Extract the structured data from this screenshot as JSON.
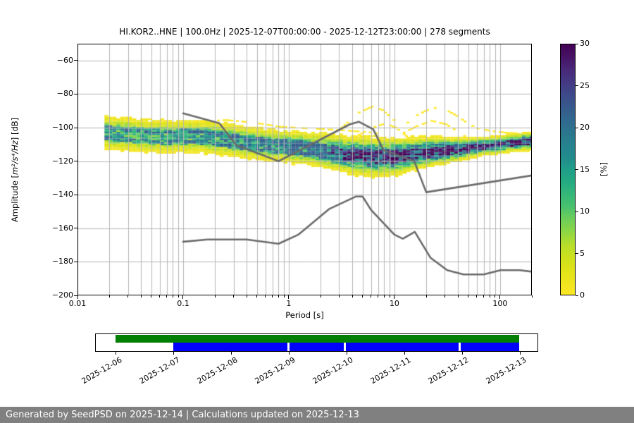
{
  "plot": {
    "title": "HI.KOR2..HNE | 100.0Hz | 2025-12-07T00:00:00 - 2025-12-12T23:00:00 | 278 segments",
    "station": "HI.KOR2..HNE",
    "sampling_rate": "100.0Hz",
    "time_range_start": "2025-12-07T00:00:00",
    "time_range_end": "2025-12-12T23:00:00",
    "segments_count": "278 segments",
    "xlabel": "Period [s]",
    "ylabel_prefix": "Amplitude [",
    "ylabel_math": "m²/s⁴/Hz",
    "ylabel_suffix": "] [dB]",
    "x_ticks": [
      {
        "value": 0.01,
        "label": "0.01"
      },
      {
        "value": 0.1,
        "label": "0.1"
      },
      {
        "value": 1,
        "label": "1"
      },
      {
        "value": 10,
        "label": "10"
      },
      {
        "value": 100,
        "label": "100"
      }
    ],
    "y_ticks": [
      {
        "value": -60,
        "label": "−60"
      },
      {
        "value": -80,
        "label": "−80"
      },
      {
        "value": -100,
        "label": "−100"
      },
      {
        "value": -120,
        "label": "−120"
      },
      {
        "value": -140,
        "label": "−140"
      },
      {
        "value": -160,
        "label": "−160"
      },
      {
        "value": -180,
        "label": "−180"
      },
      {
        "value": -200,
        "label": "−200"
      }
    ],
    "grid_color": "#b5b5b5",
    "colorbar": {
      "label": "[%]",
      "min": 0,
      "max": 30,
      "ticks": [
        0,
        5,
        10,
        15,
        20,
        25,
        30
      ],
      "colormap": "viridis_r"
    }
  },
  "chart_data": {
    "type": "heatmap",
    "title": "HI.KOR2..HNE | 100.0Hz | 2025-12-07T00:00:00 - 2025-12-12T23:00:00 | 278 segments",
    "xlabel": "Period [s]",
    "ylabel": "Amplitude [m²/s⁴/Hz] [dB]",
    "x_scale": "log",
    "xlim": [
      0.01,
      200
    ],
    "ylim": [
      -200,
      -50
    ],
    "grid": true,
    "colorbar": {
      "label": "[%]",
      "range": [
        0,
        30
      ],
      "ticks": [
        0,
        5,
        10,
        15,
        20,
        25,
        30
      ],
      "colormap": "viridis_r"
    },
    "viridis_anchors": [
      [
        0.0,
        "#440154"
      ],
      [
        0.05,
        "#471365"
      ],
      [
        0.1,
        "#482878"
      ],
      [
        0.15,
        "#443983"
      ],
      [
        0.2,
        "#3e4989"
      ],
      [
        0.25,
        "#37598c"
      ],
      [
        0.3,
        "#31688e"
      ],
      [
        0.35,
        "#2c758e"
      ],
      [
        0.4,
        "#26828e"
      ],
      [
        0.45,
        "#228b8d"
      ],
      [
        0.5,
        "#1f9e89"
      ],
      [
        0.55,
        "#25ab82"
      ],
      [
        0.6,
        "#35b779"
      ],
      [
        0.65,
        "#4ac16d"
      ],
      [
        0.7,
        "#6ece58"
      ],
      [
        0.75,
        "#8fd744"
      ],
      [
        0.8,
        "#b5de2b"
      ],
      [
        0.85,
        "#cde11d"
      ],
      [
        0.9,
        "#dfe318"
      ],
      [
        0.95,
        "#efe51c"
      ],
      [
        1.0,
        "#fde725"
      ]
    ],
    "ppsd_distribution": {
      "description": "Probability density band: per period, mode amplitude (dB), gaussian spread (dB) and peak probability (%)",
      "period_octave_step": 0.125,
      "period_range": [
        0.018,
        200
      ],
      "db_bin": 1,
      "points": [
        {
          "period": 0.018,
          "mode_db": -103.0,
          "sigma_db": 4.3,
          "peak_pct": 13
        },
        {
          "period": 0.03,
          "mode_db": -104.0,
          "sigma_db": 4.3,
          "peak_pct": 13
        },
        {
          "period": 0.05,
          "mode_db": -105.0,
          "sigma_db": 4.3,
          "peak_pct": 12.5
        },
        {
          "period": 0.08,
          "mode_db": -105.5,
          "sigma_db": 4.3,
          "peak_pct": 12.5
        },
        {
          "period": 0.13,
          "mode_db": -105.0,
          "sigma_db": 4.3,
          "peak_pct": 14
        },
        {
          "period": 0.22,
          "mode_db": -106.5,
          "sigma_db": 4.2,
          "peak_pct": 15
        },
        {
          "period": 0.4,
          "mode_db": -109.0,
          "sigma_db": 4.0,
          "peak_pct": 16
        },
        {
          "period": 0.7,
          "mode_db": -110.5,
          "sigma_db": 4.0,
          "peak_pct": 17
        },
        {
          "period": 1.0,
          "mode_db": -111.5,
          "sigma_db": 4.0,
          "peak_pct": 18
        },
        {
          "period": 1.6,
          "mode_db": -112.5,
          "sigma_db": 4.0,
          "peak_pct": 20
        },
        {
          "period": 2.5,
          "mode_db": -114.5,
          "sigma_db": 4.2,
          "peak_pct": 24
        },
        {
          "period": 4.0,
          "mode_db": -116.5,
          "sigma_db": 4.5,
          "peak_pct": 28
        },
        {
          "period": 6.0,
          "mode_db": -117.5,
          "sigma_db": 4.6,
          "peak_pct": 30
        },
        {
          "period": 10.0,
          "mode_db": -117.5,
          "sigma_db": 4.4,
          "peak_pct": 30
        },
        {
          "period": 16.0,
          "mode_db": -115.5,
          "sigma_db": 3.8,
          "peak_pct": 30
        },
        {
          "period": 25.0,
          "mode_db": -114.0,
          "sigma_db": 3.4,
          "peak_pct": 30
        },
        {
          "period": 40.0,
          "mode_db": -113.0,
          "sigma_db": 2.8,
          "peak_pct": 30
        },
        {
          "period": 63.0,
          "mode_db": -111.5,
          "sigma_db": 2.2,
          "peak_pct": 30
        },
        {
          "period": 100.0,
          "mode_db": -110.0,
          "sigma_db": 2.1,
          "peak_pct": 30
        },
        {
          "period": 160.0,
          "mode_db": -108.5,
          "sigma_db": 2.1,
          "peak_pct": 30
        },
        {
          "period": 200.0,
          "mode_db": -108.0,
          "sigma_db": 2.2,
          "peak_pct": 30
        }
      ]
    },
    "outlier_traces_db": [
      [
        [
          2.6,
          -104
        ],
        [
          3.5,
          -97
        ],
        [
          4.5,
          -91
        ],
        [
          6,
          -87.5
        ],
        [
          7.5,
          -89.5
        ],
        [
          9,
          -94
        ],
        [
          11,
          -98.5
        ],
        [
          13,
          -97
        ],
        [
          16,
          -92.5
        ],
        [
          20,
          -89.5
        ],
        [
          25,
          -88
        ],
        [
          30,
          -89.5
        ],
        [
          38,
          -93
        ],
        [
          48,
          -97.5
        ],
        [
          60,
          -100.5
        ],
        [
          80,
          -102
        ],
        [
          110,
          -103
        ],
        [
          150,
          -103.5
        ],
        [
          200,
          -103
        ]
      ],
      [
        [
          4,
          -106
        ],
        [
          6,
          -100
        ],
        [
          8,
          -97.5
        ],
        [
          10,
          -100
        ],
        [
          12,
          -104
        ],
        [
          14,
          -107
        ]
      ],
      [
        [
          12,
          -103
        ],
        [
          16,
          -99
        ],
        [
          22,
          -96
        ],
        [
          30,
          -98
        ],
        [
          40,
          -103
        ],
        [
          50,
          -107
        ]
      ],
      [
        [
          0.13,
          -96.5
        ],
        [
          0.25,
          -95.5
        ],
        [
          0.45,
          -97
        ],
        [
          0.8,
          -99.5
        ],
        [
          1.5,
          -100.5
        ],
        [
          3,
          -101.5
        ],
        [
          5,
          -102.5
        ],
        [
          7,
          -103.5
        ]
      ]
    ],
    "noise_models": {
      "color": "#6a6a6a",
      "nhnm": [
        [
          0.1,
          -91.5
        ],
        [
          0.22,
          -97.4
        ],
        [
          0.32,
          -110.5
        ],
        [
          0.8,
          -120
        ],
        [
          3.8,
          -98
        ],
        [
          4.6,
          -96.5
        ],
        [
          6.3,
          -101
        ],
        [
          7.9,
          -113.5
        ],
        [
          15.4,
          -120
        ],
        [
          20,
          -138.5
        ],
        [
          354.8,
          -126
        ]
      ],
      "nlnm": [
        [
          0.1,
          -168
        ],
        [
          0.17,
          -166.7
        ],
        [
          0.4,
          -166.7
        ],
        [
          0.8,
          -169.2
        ],
        [
          1.24,
          -163.7
        ],
        [
          2.4,
          -148.6
        ],
        [
          4.3,
          -141.1
        ],
        [
          5,
          -141.1
        ],
        [
          6,
          -149
        ],
        [
          10,
          -163.8
        ],
        [
          12,
          -166.2
        ],
        [
          15.6,
          -162.1
        ],
        [
          21.9,
          -177.5
        ],
        [
          31.6,
          -185
        ],
        [
          45,
          -187.5
        ],
        [
          70,
          -187.5
        ],
        [
          101,
          -185
        ],
        [
          154,
          -185
        ],
        [
          328,
          -187.5
        ]
      ]
    }
  },
  "timeline": {
    "date_ticks": [
      "2025-12-06",
      "2025-12-07",
      "2025-12-08",
      "2025-12-09",
      "2025-12-10",
      "2025-12-11",
      "2025-12-12",
      "2025-12-13"
    ],
    "units": "days since 2025-12-06",
    "bars": [
      {
        "name": "data-availability",
        "color": "#007f00",
        "row": "top",
        "segments": [
          [
            0.0,
            6.99
          ]
        ]
      },
      {
        "name": "psd-coverage",
        "color": "#0000ff",
        "row": "bottom",
        "segments": [
          [
            1.0,
            2.97
          ],
          [
            3.01,
            3.95
          ],
          [
            3.99,
            5.94
          ],
          [
            5.98,
            6.99
          ]
        ]
      }
    ]
  },
  "footer": {
    "text": "Generated by SeedPSD on 2025-12-14 | Calculations updated on 2025-12-13"
  }
}
